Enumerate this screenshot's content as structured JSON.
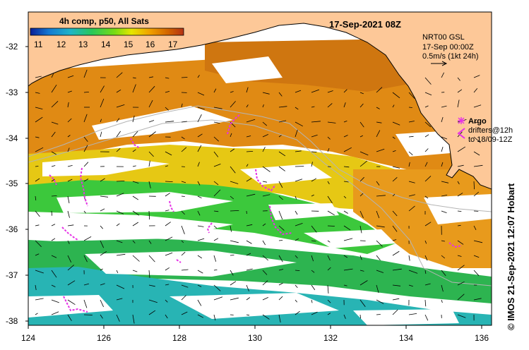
{
  "title": "17-Sep-2021 08Z",
  "colorbar": {
    "label": "4h comp, p50, All Sats",
    "ticks": [
      "11",
      "12",
      "13",
      "14",
      "15",
      "16",
      "17"
    ],
    "colors": [
      "#0a1e96",
      "#1478d2",
      "#1eb4c8",
      "#28c85a",
      "#78dc14",
      "#e6e600",
      "#f0a000",
      "#d26400",
      "#b43214"
    ]
  },
  "current_legend": {
    "line1": "NRT00 GSL",
    "line2": "17-Sep 00:00Z",
    "line3": "0.5m/s (1kt 24h)"
  },
  "markers_legend": {
    "argo": "Argo",
    "drifters": "drifters@12h",
    "drifters_period": "to 18/09-12Z"
  },
  "credit": "© IMOS 21-Sep-2021 12:07 Hobart",
  "axes": {
    "lon_ticks": [
      "124",
      "126",
      "128",
      "130",
      "132",
      "134",
      "136"
    ],
    "lat_ticks": [
      "-32",
      "-33",
      "-34",
      "-35",
      "-36",
      "-37",
      "-38"
    ],
    "lon_range": [
      124,
      136.5
    ],
    "lat_range": [
      -31.3,
      -38.1
    ]
  },
  "colors": {
    "land": "#fdc898",
    "marker": "#e632e6",
    "coast": "#000000"
  }
}
